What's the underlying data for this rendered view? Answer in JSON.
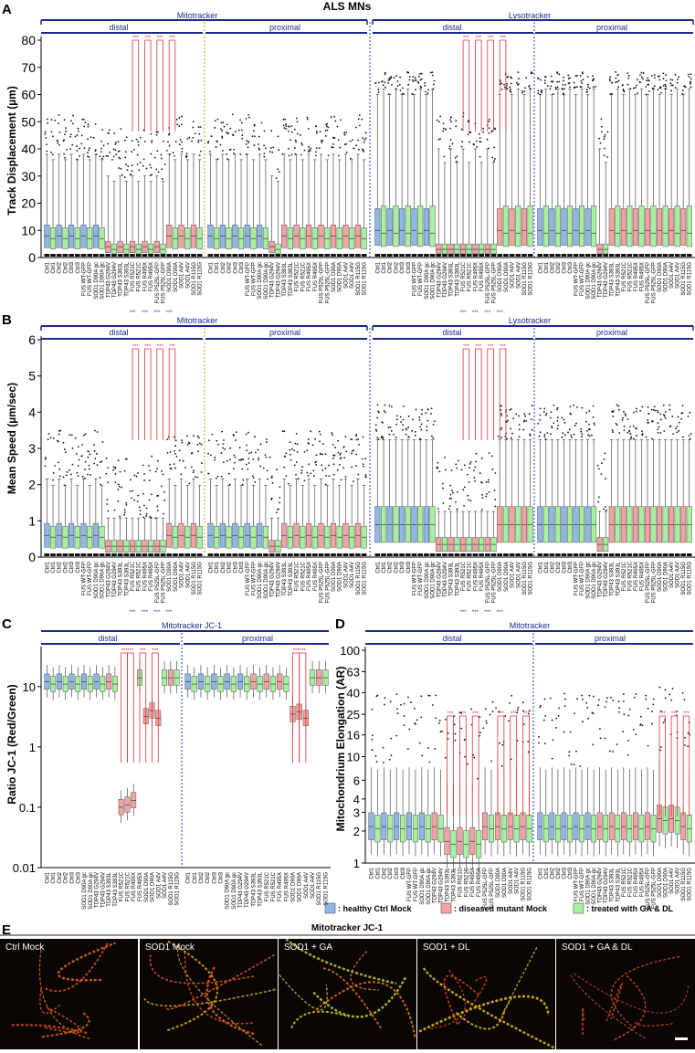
{
  "figure_title": "ALS MNs",
  "tick_labels": [
    "Ctrl1",
    "Ctrl1",
    "Ctrl2",
    "Ctrl2",
    "Ctrl3",
    "Ctrl3",
    "FUS WT-GFP",
    "FUS WT-GFP",
    "SOD1 D90A gc",
    "SOD1 D90A gc",
    "TDP43 G294V",
    "TDP43 G294V",
    "TDP43 S393L",
    "TDP43 S393L",
    "FUS R521C",
    "FUS R521C",
    "FUS R495X",
    "FUS R495X",
    "FUS P525L-GFP",
    "FUS P525L-GFP",
    "SOD1 D90A",
    "SOD1 D90A",
    "SOD1 A4V",
    "SOD1 A4V",
    "SOD1 R115G",
    "SOD1 R115G"
  ],
  "tick_labels_jc1": [
    "Ctrl1",
    "Ctrl1",
    "Ctrl2",
    "Ctrl2",
    "Ctrl3",
    "Ctrl3",
    "SOD1 D90A gc",
    "SOD1 D90A gc",
    "TDP43 G294V",
    "TDP43 G294V",
    "TDP43 S393L",
    "TDP43 S393L",
    "FUS R521C",
    "FUS R521C",
    "FUS R495X",
    "FUS R495X",
    "SOD1 D90A",
    "SOD1 D90A",
    "SOD1 A4V",
    "SOD1 A4V",
    "SOD1 R115G",
    "SOD1 R115G"
  ],
  "groups": {
    "mito": "Mitotracker",
    "lyso": "Lysotracker",
    "jc1": "Mitotracker JC-1",
    "distal": "distal",
    "proximal": "proximal"
  },
  "legend": [
    {
      "label": ": healthy Ctrl Mock",
      "color": "#8db8e8"
    },
    {
      "label": ": diseased mutant Mock",
      "color": "#f4a3a3"
    },
    {
      "label": ": treated with GA & DL",
      "color": "#a6f0a0"
    }
  ],
  "sig": "***",
  "micro_title": "Mitotracker JC-1",
  "micro_panels": [
    "Ctrl Mock",
    "SOD1 Mock",
    "SOD1 + GA",
    "SOD1 + DL",
    "SOD1 + GA & DL"
  ],
  "chart_data": [
    {
      "panel": "A",
      "type": "box",
      "ylabel": "Track Displacement (µm)",
      "ylim": [
        0,
        80
      ],
      "yticks": [
        0,
        10,
        20,
        30,
        40,
        50,
        60,
        70,
        80
      ],
      "groups": [
        "Mitotracker distal",
        "Mitotracker proximal",
        "Lysotracker distal",
        "Lysotracker proximal"
      ],
      "medians": [
        [
          8,
          7,
          8,
          7,
          8,
          7,
          8,
          7,
          8,
          7,
          4,
          3,
          4,
          3,
          4,
          3,
          4,
          3,
          4,
          3,
          8,
          7,
          8,
          7,
          8,
          7
        ],
        [
          8,
          7,
          8,
          7,
          8,
          7,
          8,
          7,
          8,
          7,
          4,
          3,
          8,
          7,
          8,
          7,
          8,
          7,
          8,
          7,
          8,
          7,
          8,
          7,
          8,
          7
        ],
        [
          10,
          9,
          10,
          9,
          10,
          9,
          10,
          9,
          10,
          9,
          3,
          3,
          3,
          3,
          3,
          3,
          3,
          3,
          3,
          3,
          10,
          9,
          10,
          9,
          10,
          9
        ],
        [
          10,
          9,
          10,
          9,
          10,
          9,
          10,
          9,
          10,
          9,
          3,
          3,
          10,
          9,
          10,
          9,
          10,
          9,
          10,
          9,
          10,
          9,
          10,
          9,
          10,
          9
        ]
      ],
      "q3": [
        [
          12,
          11,
          12,
          11,
          12,
          11,
          12,
          11,
          12,
          11,
          6,
          5,
          6,
          5,
          6,
          5,
          6,
          5,
          6,
          5,
          12,
          11,
          12,
          11,
          12,
          11
        ],
        [
          12,
          11,
          12,
          11,
          12,
          11,
          12,
          11,
          12,
          11,
          6,
          5,
          12,
          11,
          12,
          11,
          12,
          11,
          12,
          11,
          12,
          11,
          12,
          11,
          12,
          11
        ],
        [
          18,
          19,
          18,
          19,
          18,
          19,
          18,
          19,
          18,
          19,
          5,
          5,
          5,
          5,
          5,
          5,
          5,
          5,
          5,
          5,
          18,
          19,
          18,
          19,
          18,
          19
        ],
        [
          18,
          19,
          18,
          19,
          18,
          19,
          18,
          19,
          18,
          19,
          5,
          5,
          18,
          19,
          18,
          19,
          18,
          19,
          18,
          19,
          18,
          19,
          18,
          19,
          18,
          19
        ]
      ],
      "whisker_high": [
        [
          38,
          36,
          38,
          36,
          38,
          36,
          38,
          36,
          38,
          36,
          30,
          28,
          30,
          28,
          30,
          28,
          30,
          28,
          30,
          28,
          38,
          36,
          38,
          36,
          38,
          36
        ],
        [
          38,
          36,
          38,
          36,
          38,
          36,
          38,
          36,
          38,
          36,
          30,
          28,
          38,
          36,
          38,
          36,
          38,
          36,
          38,
          36,
          38,
          36,
          38,
          36,
          38,
          36
        ],
        [
          60,
          62,
          60,
          62,
          60,
          62,
          60,
          62,
          60,
          62,
          40,
          35,
          40,
          35,
          40,
          35,
          40,
          35,
          40,
          35,
          60,
          62,
          60,
          62,
          60,
          62
        ],
        [
          60,
          62,
          60,
          62,
          60,
          62,
          60,
          62,
          60,
          62,
          40,
          35,
          60,
          62,
          60,
          62,
          60,
          62,
          60,
          62,
          60,
          62,
          60,
          62,
          60,
          62
        ]
      ],
      "significance_pairs": [
        [
          0,
          [
            14,
            15
          ]
        ],
        [
          0,
          [
            16,
            17
          ]
        ],
        [
          0,
          [
            18,
            19
          ]
        ],
        [
          0,
          [
            20,
            21
          ]
        ],
        [
          2,
          [
            14,
            15
          ]
        ],
        [
          2,
          [
            16,
            17
          ]
        ],
        [
          2,
          [
            18,
            19
          ]
        ],
        [
          2,
          [
            20,
            21
          ]
        ]
      ]
    },
    {
      "panel": "B",
      "type": "box",
      "ylabel": "Mean Speed (µm/sec)",
      "ylim": [
        0,
        6
      ],
      "yticks": [
        0,
        1,
        2,
        3,
        4,
        5,
        6
      ],
      "groups": [
        "Mitotracker distal",
        "Mitotracker proximal",
        "Lysotracker distal",
        "Lysotracker proximal"
      ],
      "medians": [
        [
          0.6,
          0.55,
          0.6,
          0.55,
          0.6,
          0.55,
          0.6,
          0.55,
          0.6,
          0.55,
          0.3,
          0.3,
          0.3,
          0.3,
          0.3,
          0.3,
          0.3,
          0.3,
          0.3,
          0.3,
          0.6,
          0.55,
          0.6,
          0.55,
          0.6,
          0.55
        ],
        [
          0.6,
          0.55,
          0.6,
          0.55,
          0.6,
          0.55,
          0.6,
          0.55,
          0.6,
          0.55,
          0.3,
          0.3,
          0.6,
          0.55,
          0.6,
          0.55,
          0.6,
          0.55,
          0.6,
          0.55,
          0.6,
          0.55,
          0.6,
          0.55,
          0.6,
          0.55
        ],
        [
          0.9,
          0.9,
          0.9,
          0.9,
          0.9,
          0.9,
          0.9,
          0.9,
          0.9,
          0.9,
          0.35,
          0.35,
          0.35,
          0.35,
          0.35,
          0.35,
          0.35,
          0.35,
          0.35,
          0.35,
          0.9,
          0.9,
          0.9,
          0.9,
          0.9,
          0.9
        ],
        [
          0.9,
          0.9,
          0.9,
          0.9,
          0.9,
          0.9,
          0.9,
          0.9,
          0.9,
          0.9,
          0.35,
          0.35,
          0.9,
          0.9,
          0.9,
          0.9,
          0.9,
          0.9,
          0.9,
          0.9,
          0.9,
          0.9,
          0.9,
          0.9,
          0.9,
          0.9
        ]
      ],
      "significance_pairs": [
        [
          0,
          [
            14,
            15
          ]
        ],
        [
          0,
          [
            16,
            17
          ]
        ],
        [
          0,
          [
            18,
            19
          ]
        ],
        [
          0,
          [
            20,
            21
          ]
        ],
        [
          2,
          [
            14,
            15
          ]
        ],
        [
          2,
          [
            16,
            17
          ]
        ],
        [
          2,
          [
            18,
            19
          ]
        ],
        [
          2,
          [
            20,
            21
          ]
        ]
      ]
    },
    {
      "panel": "C",
      "type": "box",
      "ylabel": "Ratio JC-1 (Red/Green)",
      "yscale": "log",
      "ylim": [
        0.01,
        40
      ],
      "yticks": [
        0.01,
        0.1,
        1,
        10
      ],
      "groups": [
        "Mitotracker JC-1 distal",
        "Mitotracker JC-1 proximal"
      ],
      "medians": [
        [
          12,
          11,
          12,
          11,
          12,
          11,
          12,
          11,
          12,
          11,
          12,
          11,
          0.1,
          0.11,
          0.13,
          14,
          3.2,
          4.0,
          3.0,
          14,
          14,
          14
        ],
        [
          12,
          11,
          12,
          11,
          12,
          11,
          12,
          11,
          12,
          11,
          12,
          11,
          12,
          11,
          12,
          11,
          3.5,
          3.8,
          3.0,
          14,
          14,
          14
        ]
      ],
      "significance_pairs": [
        [
          0,
          [
            12,
            13
          ]
        ],
        [
          0,
          [
            13,
            14
          ]
        ],
        [
          0,
          [
            15,
            16
          ]
        ],
        [
          0,
          [
            17,
            18
          ]
        ],
        [
          1,
          [
            16,
            17
          ]
        ],
        [
          1,
          [
            17,
            18
          ]
        ]
      ]
    },
    {
      "panel": "D",
      "type": "box",
      "ylabel": "Mitochondrium Elongation (AR)",
      "yscale": "log",
      "ylim": [
        1,
        100
      ],
      "yticks": [
        1,
        2,
        3,
        4,
        6,
        10,
        16,
        25,
        40,
        63,
        100
      ],
      "groups": [
        "Mitotracker distal",
        "Mitotracker proximal"
      ],
      "medians": [
        [
          2.2,
          2.1,
          2.2,
          2.1,
          2.2,
          2.1,
          2.2,
          2.1,
          2.2,
          2.1,
          2.2,
          2.1,
          1.6,
          1.5,
          1.6,
          1.5,
          1.6,
          1.5,
          2.2,
          2.1,
          2.2,
          2.1,
          2.2,
          2.1,
          2.2,
          2.1
        ],
        [
          2.2,
          2.1,
          2.2,
          2.1,
          2.2,
          2.1,
          2.2,
          2.1,
          2.2,
          2.1,
          2.2,
          2.1,
          2.2,
          2.1,
          2.2,
          2.1,
          2.2,
          2.1,
          2.2,
          2.1,
          2.6,
          2.5,
          2.6,
          2.5,
          2.2,
          2.1
        ]
      ],
      "significance_pairs": [
        [
          0,
          [
            12,
            13
          ]
        ],
        [
          0,
          [
            14,
            15
          ]
        ],
        [
          0,
          [
            16,
            17
          ]
        ],
        [
          0,
          [
            20,
            21
          ]
        ],
        [
          0,
          [
            22,
            23
          ]
        ],
        [
          0,
          [
            24,
            25
          ]
        ],
        [
          1,
          [
            20,
            21
          ]
        ],
        [
          1,
          [
            22,
            23
          ]
        ],
        [
          1,
          [
            24,
            25
          ]
        ]
      ]
    }
  ]
}
